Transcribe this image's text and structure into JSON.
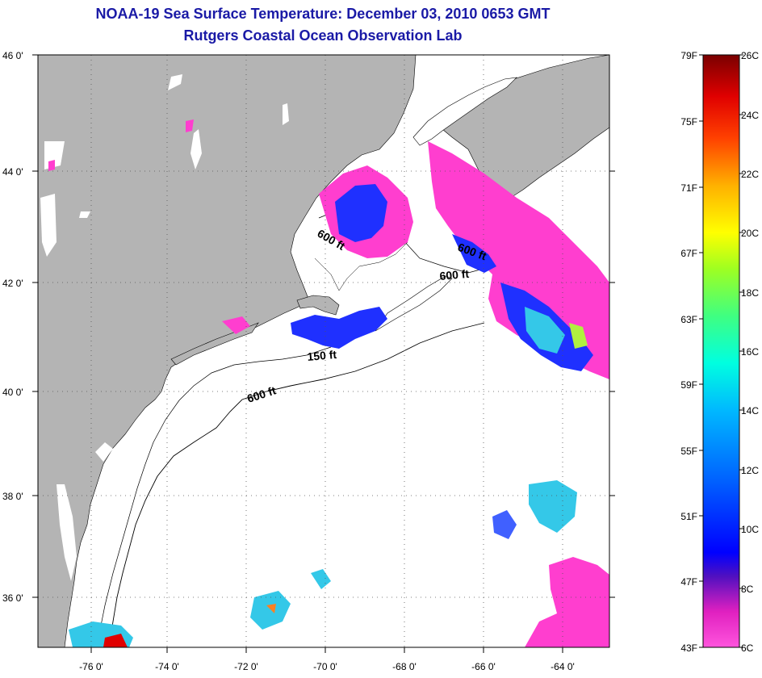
{
  "header": {
    "title": "NOAA-19 Sea Surface Temperature:  December 03, 2010 0653 GMT",
    "subtitle": "Rutgers Coastal Ocean Observation Lab"
  },
  "map": {
    "lat_labels": [
      "46 0'",
      "44 0'",
      "42 0'",
      "40 0'",
      "38 0'",
      "36 0'"
    ],
    "lon_labels": [
      "-76 0'",
      "-74 0'",
      "-72 0'",
      "-70 0'",
      "-68 0'",
      "-66 0'",
      "-64 0'"
    ],
    "contour_labels": [
      "600 ft",
      "600 ft",
      "600 ft",
      "150 ft",
      "600 ft"
    ],
    "colors": {
      "land": "#b4b4b4",
      "ocean": "#ffffff",
      "cold": "#ff3ecf",
      "cool": "#1f30ff",
      "warm_patch": "#34c8e8"
    }
  },
  "colorbar": {
    "fahrenheit_labels": [
      "79F",
      "75F",
      "71F",
      "67F",
      "63F",
      "59F",
      "55F",
      "51F",
      "47F",
      "43F"
    ],
    "celsius_labels": [
      "26C",
      "24C",
      "22C",
      "20C",
      "18C",
      "16C",
      "14C",
      "12C",
      "10C",
      "8C",
      "6C"
    ]
  }
}
